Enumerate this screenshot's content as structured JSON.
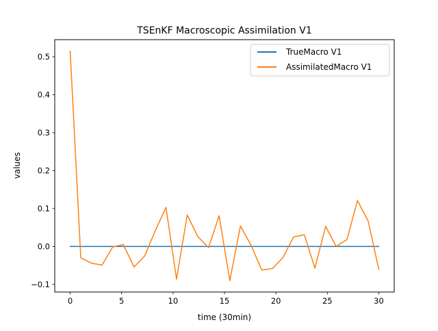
{
  "chart_data": {
    "type": "line",
    "title": "TSEnKF Macroscopic Assimilation V1",
    "xlabel": "time (30min)",
    "ylabel": "values",
    "xlim": [
      -1.5,
      31.5
    ],
    "ylim": [
      -0.12,
      0.545
    ],
    "x_ticks": [
      0,
      5,
      10,
      15,
      20,
      25,
      30
    ],
    "x_tick_labels": [
      "0",
      "5",
      "10",
      "15",
      "20",
      "25",
      "30"
    ],
    "y_ticks": [
      -0.1,
      0.0,
      0.1,
      0.2,
      0.3,
      0.4,
      0.5
    ],
    "y_tick_labels": [
      "−0.1",
      "0.0",
      "0.1",
      "0.2",
      "0.3",
      "0.4",
      "0.5"
    ],
    "grid": false,
    "legend_position": "top-right",
    "series": [
      {
        "name": "TrueMacro V1",
        "color": "#1f77b4",
        "x": [
          0,
          1,
          2,
          3,
          4,
          5,
          6,
          7,
          8,
          9,
          10,
          11,
          12,
          13,
          14,
          15,
          16,
          17,
          18,
          19,
          20,
          21,
          22,
          23,
          24,
          25,
          26,
          27,
          28,
          29,
          30
        ],
        "y": [
          0,
          0,
          0,
          0,
          0,
          0,
          0,
          0,
          0,
          0,
          0,
          0,
          0,
          0,
          0,
          0,
          0,
          0,
          0,
          0,
          0,
          0,
          0,
          0,
          0,
          0,
          0,
          0,
          0,
          0,
          0
        ]
      },
      {
        "name": "AssimilatedMacro V1",
        "color": "#ff7f0e",
        "x": [
          0,
          1.03,
          2.07,
          3.1,
          4.14,
          5.17,
          6.21,
          7.24,
          8.28,
          9.31,
          10.34,
          11.38,
          12.41,
          13.45,
          14.48,
          15.52,
          16.55,
          17.59,
          18.62,
          19.66,
          20.69,
          21.72,
          22.76,
          23.79,
          24.83,
          25.86,
          26.9,
          27.93,
          28.97,
          30
        ],
        "y": [
          0.515,
          -0.03,
          -0.044,
          -0.049,
          -0.001,
          0.005,
          -0.054,
          -0.025,
          0.042,
          0.103,
          -0.086,
          0.083,
          0.026,
          -0.003,
          0.081,
          -0.09,
          0.054,
          0.003,
          -0.062,
          -0.058,
          -0.029,
          0.025,
          0.031,
          -0.057,
          0.053,
          0.0,
          0.018,
          0.121,
          0.067,
          -0.06
        ]
      }
    ]
  }
}
